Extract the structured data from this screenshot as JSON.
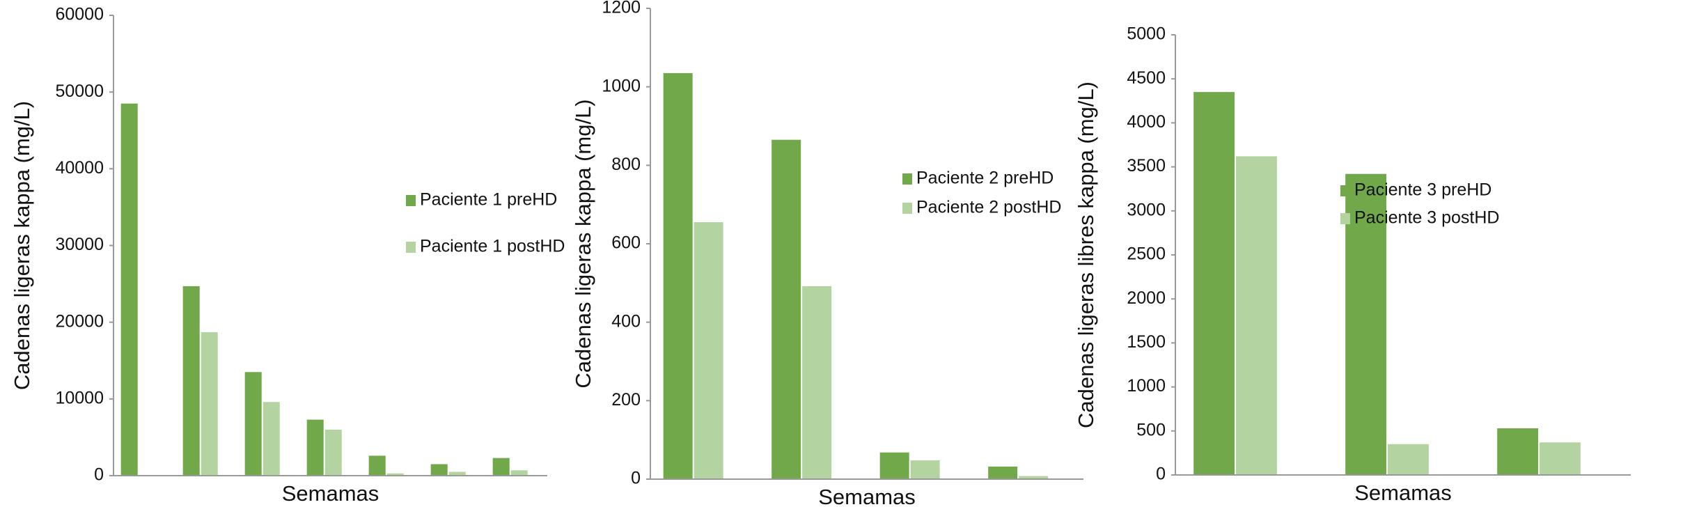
{
  "chart_data": [
    {
      "type": "bar",
      "x_label": "Semamas",
      "y_label": "Cadenas ligeras kappa (mg/L)",
      "categories": [
        null,
        null,
        null,
        null,
        null,
        null,
        null
      ],
      "series": [
        {
          "name": "Paciente 1 preHD",
          "color": "#70a84a",
          "values": [
            48500,
            24700,
            13500,
            7300,
            2600,
            1500,
            2300
          ]
        },
        {
          "name": "Paciente 1 postHD",
          "color": "#b3d4a1",
          "values": [
            null,
            18700,
            9600,
            6000,
            300,
            500,
            700
          ]
        }
      ],
      "ylim": [
        0,
        60000
      ],
      "yticks": [
        0,
        10000,
        20000,
        30000,
        40000,
        50000,
        60000
      ]
    },
    {
      "type": "bar",
      "x_label": "Semamas",
      "y_label": "Cadenas ligeras kappa (mg/L)",
      "categories": [
        null,
        null,
        null,
        null
      ],
      "series": [
        {
          "name": "Paciente 2 preHD",
          "color": "#70a84a",
          "values": [
            1035,
            865,
            68,
            32
          ]
        },
        {
          "name": "Paciente 2 postHD",
          "color": "#b3d4a1",
          "values": [
            655,
            492,
            48,
            8
          ]
        }
      ],
      "ylim": [
        0,
        1200
      ],
      "yticks": [
        0,
        200,
        400,
        600,
        800,
        1000,
        1200
      ]
    },
    {
      "type": "bar",
      "x_label": "Semamas",
      "y_label": "Cadenas ligeras libres kappa (mg/L)",
      "categories": [
        null,
        null,
        null
      ],
      "series": [
        {
          "name": "Paciente 3 preHD",
          "color": "#70a84a",
          "values": [
            4350,
            3420,
            530
          ]
        },
        {
          "name": "Paciente 3 postHD",
          "color": "#b3d4a1",
          "values": [
            3620,
            350,
            370
          ]
        }
      ],
      "ylim": [
        0,
        5000
      ],
      "yticks": [
        0,
        500,
        1000,
        1500,
        2000,
        2500,
        3000,
        3500,
        4000,
        4500,
        5000
      ]
    }
  ]
}
